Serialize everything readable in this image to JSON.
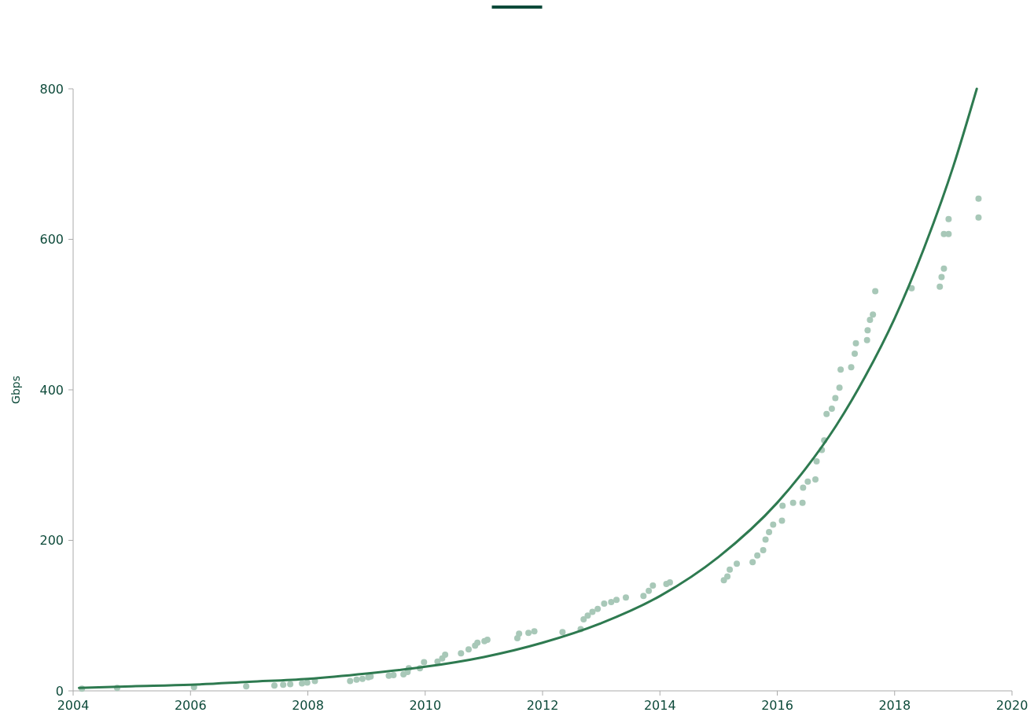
{
  "chart_data": {
    "type": "scatter",
    "ylabel": "Gbps",
    "xlim": [
      2004,
      2020
    ],
    "xticks": [
      2004,
      2006,
      2008,
      2010,
      2012,
      2014,
      2016,
      2018,
      2020
    ],
    "ylim": [
      0,
      800
    ],
    "yticks": [
      0,
      200,
      400,
      600,
      800
    ],
    "grid": false,
    "series": [
      {
        "marker": "circle",
        "color": "#a8c8b8",
        "x": [
          2004.15,
          2004.75,
          2006.06,
          2006.95,
          2007.43,
          2007.58,
          2007.7,
          2007.9,
          2007.99,
          2008.12,
          2008.72,
          2008.83,
          2008.93,
          2009.03,
          2009.07,
          2009.38,
          2009.46,
          2009.63,
          2009.7,
          2009.72,
          2009.91,
          2009.98,
          2010.21,
          2010.29,
          2010.34,
          2010.61,
          2010.74,
          2010.85,
          2010.89,
          2011.01,
          2011.06,
          2011.57,
          2011.6,
          2011.76,
          2011.86,
          2012.34,
          2012.65,
          2012.7,
          2012.77,
          2012.85,
          2012.94,
          2013.05,
          2013.17,
          2013.26,
          2013.42,
          2013.72,
          2013.81,
          2013.88,
          2014.11,
          2014.17,
          2015.09,
          2015.15,
          2015.19,
          2015.31,
          2015.58,
          2015.66,
          2015.76,
          2015.8,
          2015.86,
          2015.93,
          2016.08,
          2016.09,
          2016.27,
          2016.43,
          2016.44,
          2016.52,
          2016.65,
          2016.67,
          2016.76,
          2016.8,
          2016.84,
          2016.93,
          2016.99,
          2017.06,
          2017.08,
          2017.26,
          2017.32,
          2017.34,
          2017.53,
          2017.54,
          2017.58,
          2017.63,
          2017.67,
          2018.29,
          2018.77,
          2018.8,
          2018.84,
          2018.84,
          2018.92,
          2018.92,
          2019.43,
          2019.43
        ],
        "values": [
          3,
          4,
          5,
          6,
          7,
          8,
          9,
          10,
          11,
          13,
          13,
          15,
          16,
          18,
          19,
          20,
          21,
          22,
          25,
          30,
          30,
          38,
          39,
          43,
          48,
          50,
          55,
          60,
          64,
          66,
          68,
          70,
          76,
          77,
          79,
          78,
          82,
          95,
          100,
          105,
          109,
          116,
          118,
          121,
          124,
          126,
          133,
          140,
          142,
          144,
          147,
          152,
          161,
          169,
          171,
          180,
          187,
          201,
          211,
          221,
          226,
          246,
          250,
          250,
          270,
          278,
          281,
          305,
          320,
          333,
          368,
          375,
          389,
          403,
          427,
          430,
          448,
          462,
          466,
          479,
          493,
          500,
          531,
          535,
          537,
          550,
          561,
          607,
          607,
          627,
          629,
          654
        ]
      },
      {
        "type": "line",
        "color": "#2e7a50",
        "x": [
          2004.1,
          2005,
          2006,
          2007,
          2008,
          2009,
          2010,
          2011,
          2012,
          2013,
          2014,
          2015,
          2016,
          2016.5,
          2017,
          2017.5,
          2018,
          2018.5,
          2019,
          2019.4
        ],
        "values": [
          4,
          6,
          8,
          12,
          16,
          23,
          32,
          45,
          64,
          90,
          126,
          178,
          250,
          297,
          352,
          418,
          495,
          588,
          697,
          800
        ]
      }
    ]
  }
}
